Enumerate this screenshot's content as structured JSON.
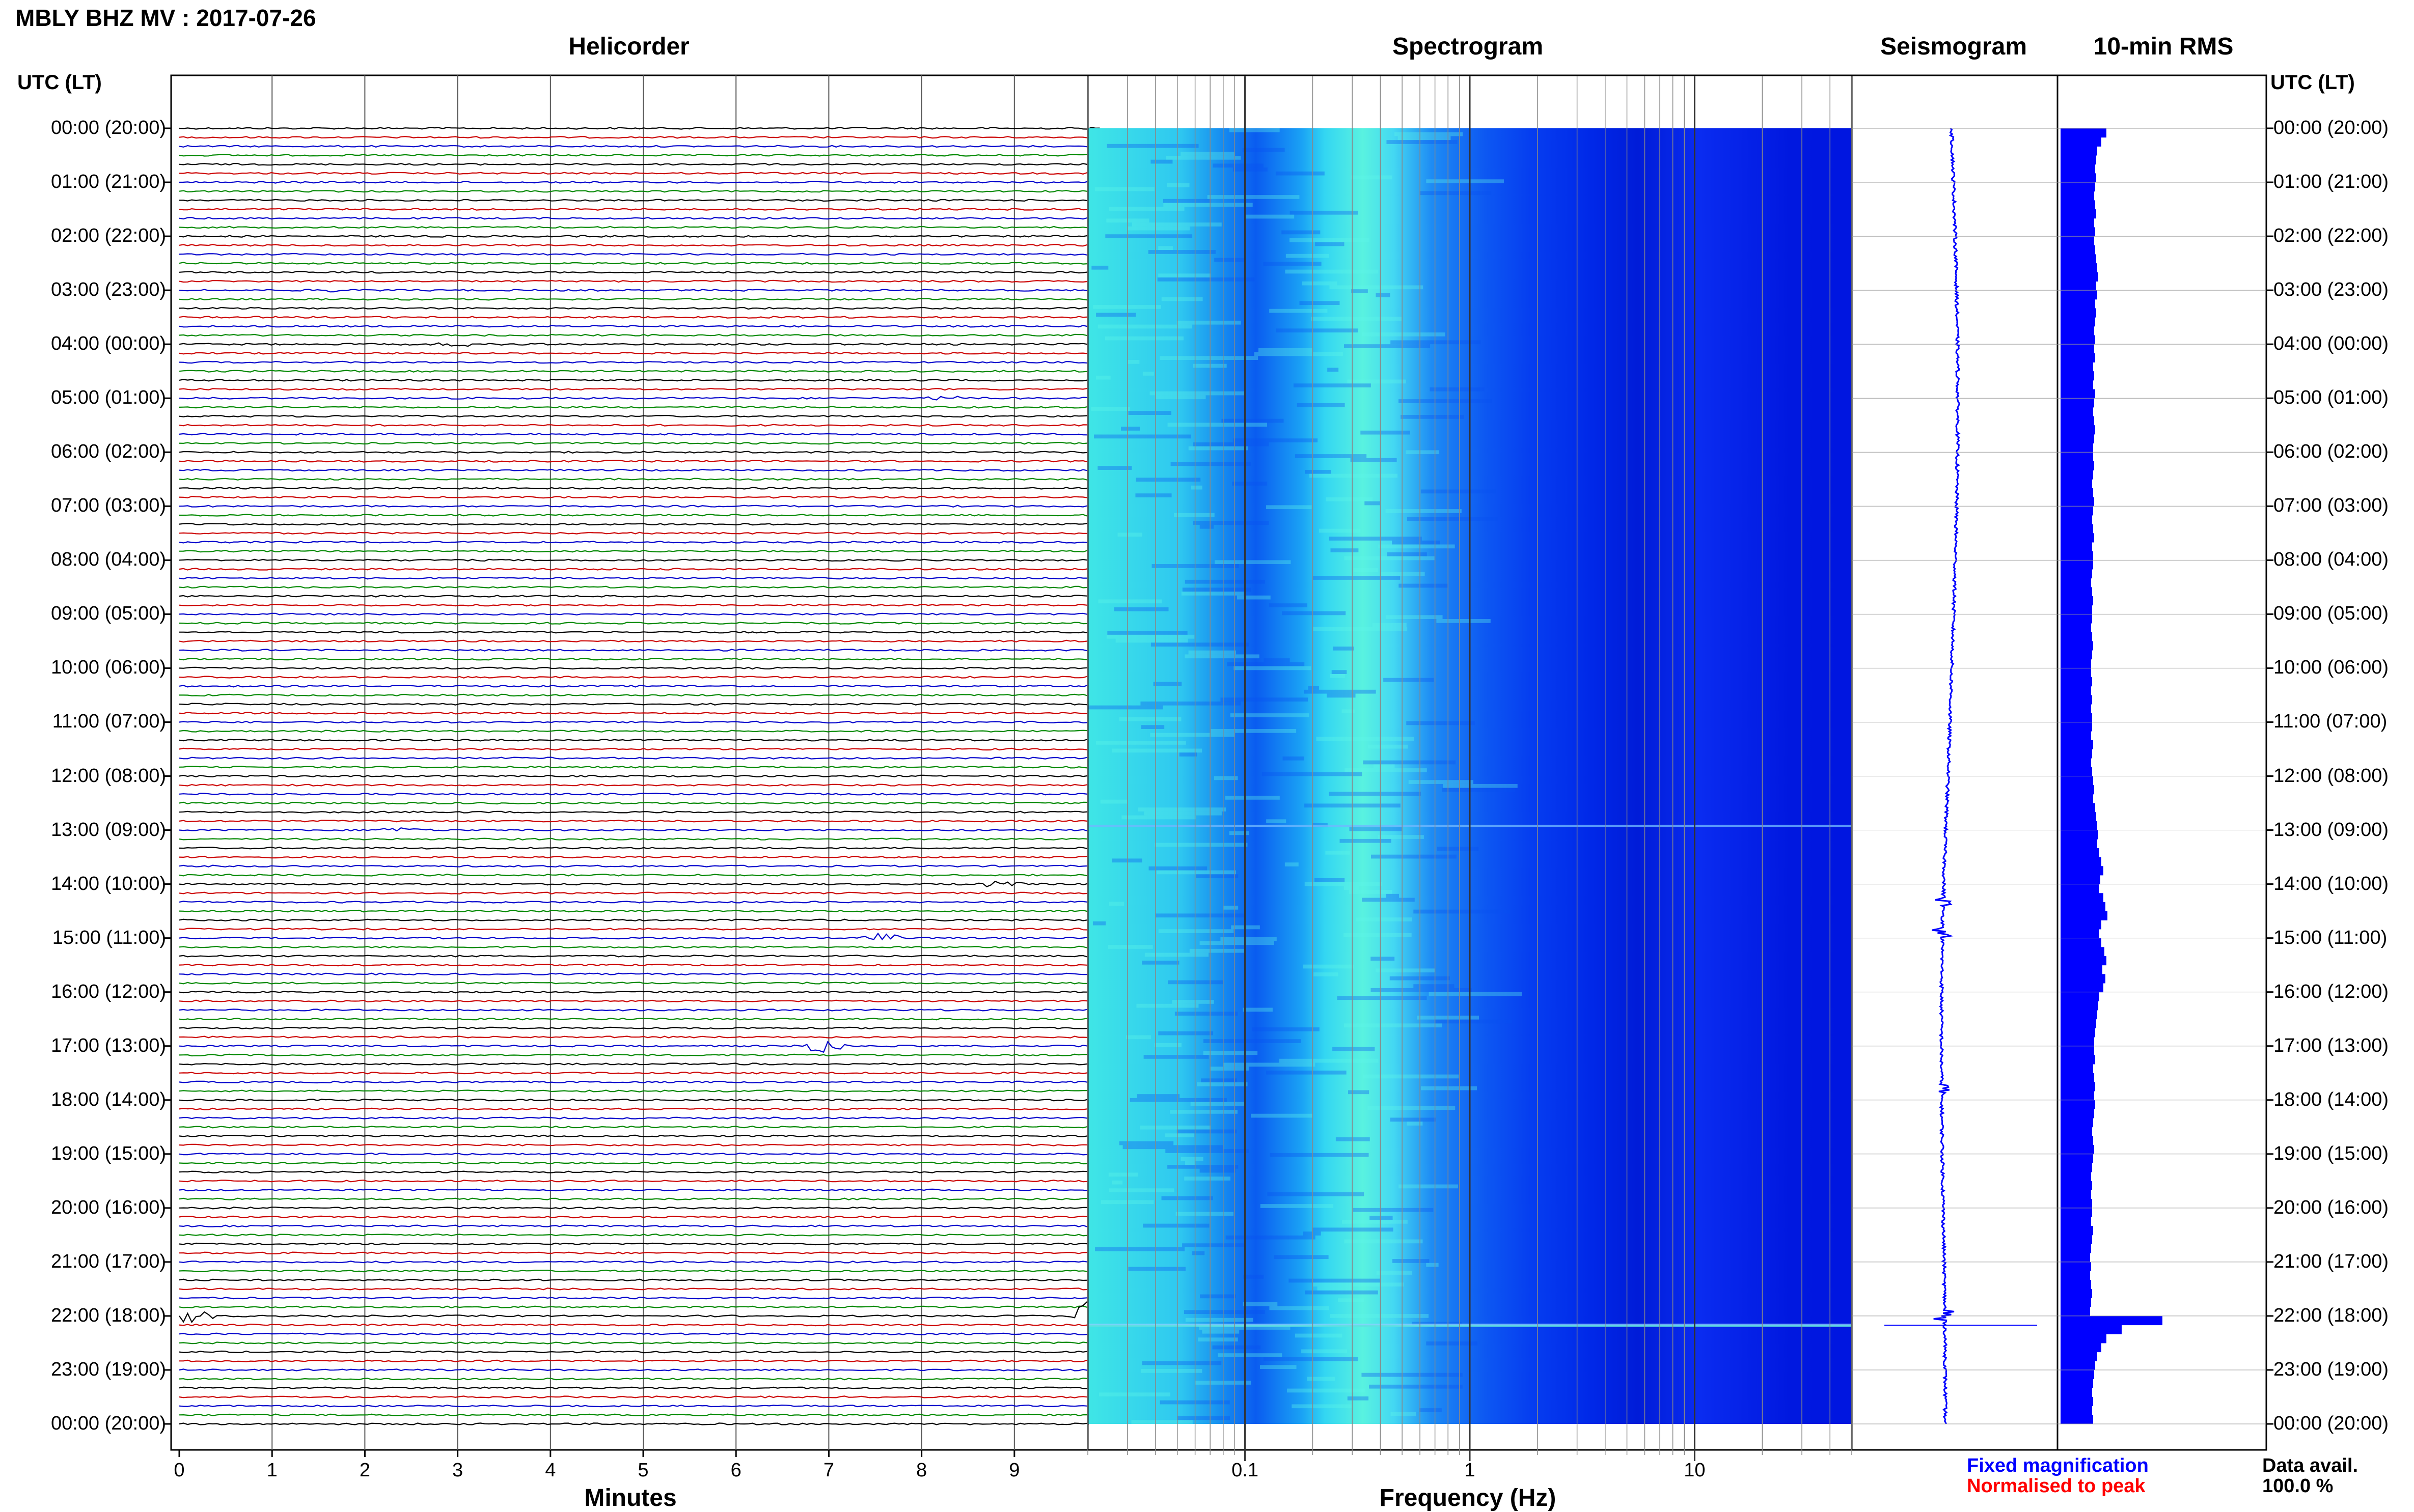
{
  "header": {
    "title": "MBLY BHZ MV : 2017-07-26"
  },
  "panels": {
    "helicorder": "Helicorder",
    "spectrogram": "Spectrogram",
    "seismogram": "Seismogram",
    "rms": "10-min RMS"
  },
  "axis_headers": {
    "left": "UTC (LT)",
    "right": "UTC (LT)"
  },
  "time_labels": [
    "00:00 (20:00)",
    "01:00 (21:00)",
    "02:00 (22:00)",
    "03:00 (23:00)",
    "04:00 (00:00)",
    "05:00 (01:00)",
    "06:00 (02:00)",
    "07:00 (03:00)",
    "08:00 (04:00)",
    "09:00 (05:00)",
    "10:00 (06:00)",
    "11:00 (07:00)",
    "12:00 (08:00)",
    "13:00 (09:00)",
    "14:00 (10:00)",
    "15:00 (11:00)",
    "16:00 (12:00)",
    "17:00 (13:00)",
    "18:00 (14:00)",
    "19:00 (15:00)",
    "20:00 (16:00)",
    "21:00 (17:00)",
    "22:00 (18:00)",
    "23:00 (19:00)",
    "00:00 (20:00)"
  ],
  "legend": {
    "fixed": "Fixed magnification",
    "normalised": "Normalised to peak",
    "colors": {
      "fixed": "#0000ff",
      "normalised": "#ff0000"
    }
  },
  "data_availability": {
    "label": "Data avail.",
    "value": "100.0 %"
  },
  "chart_data": [
    {
      "type": "line",
      "panel": "Helicorder",
      "xlabel": "Minutes",
      "x_ticks": [
        "0",
        "1",
        "2",
        "3",
        "4",
        "5",
        "6",
        "7",
        "8",
        "9"
      ],
      "xlim": [
        0,
        10
      ],
      "traces_per_hour": 6,
      "trace_colors": [
        "#000000",
        "#cc0000",
        "#0000cc",
        "#008800"
      ],
      "events": [
        {
          "hour": 3,
          "minute": 1.8,
          "amp": 0.3
        },
        {
          "hour": 4,
          "minute": 3.0,
          "amp": 0.3
        },
        {
          "hour": 5,
          "minute": 8.2,
          "amp": 0.3
        },
        {
          "hour": 13,
          "minute": 2.4,
          "amp": 0.4
        },
        {
          "hour": 14,
          "minute": 8.8,
          "amp": 0.4
        },
        {
          "hour": 15,
          "minute": 7.6,
          "amp": 0.6
        },
        {
          "hour": 17,
          "minute": 6.9,
          "amp": 0.8
        },
        {
          "hour": 22,
          "minute": 0.1,
          "amp": 1.2
        },
        {
          "hour": 22,
          "minute": 9.9,
          "amp": 2.5
        }
      ]
    },
    {
      "type": "heatmap",
      "panel": "Spectrogram",
      "xlabel": "Frequency (Hz)",
      "x_scale": "log",
      "xlim": [
        0.02,
        50
      ],
      "x_ticks": [
        "0.1",
        "1",
        "10"
      ],
      "colormap": [
        "#0000ff",
        "#00a0ff",
        "#00ffff",
        "#c0ff60"
      ]
    },
    {
      "type": "line",
      "panel": "Seismogram",
      "trace_color": "#0000ff",
      "spikes_at_hour": [
        14.3,
        14.9,
        17.8,
        22.0
      ]
    },
    {
      "type": "bar",
      "panel": "10-min RMS",
      "bar_color": "#0000ff",
      "x_min": 0,
      "x_max": 1,
      "values": [
        0.45,
        0.4,
        0.36,
        0.35,
        0.34,
        0.35,
        0.34,
        0.33,
        0.34,
        0.35,
        0.33,
        0.34,
        0.33,
        0.34,
        0.35,
        0.36,
        0.37,
        0.35,
        0.36,
        0.34,
        0.35,
        0.34,
        0.33,
        0.34,
        0.33,
        0.34,
        0.32,
        0.33,
        0.32,
        0.34,
        0.33,
        0.32,
        0.33,
        0.34,
        0.33,
        0.32,
        0.32,
        0.33,
        0.32,
        0.31,
        0.32,
        0.33,
        0.32,
        0.31,
        0.32,
        0.33,
        0.31,
        0.32,
        0.32,
        0.31,
        0.3,
        0.31,
        0.32,
        0.31,
        0.31,
        0.3,
        0.31,
        0.32,
        0.31,
        0.3,
        0.3,
        0.31,
        0.3,
        0.31,
        0.3,
        0.31,
        0.31,
        0.3,
        0.32,
        0.31,
        0.3,
        0.31,
        0.32,
        0.33,
        0.32,
        0.34,
        0.35,
        0.36,
        0.37,
        0.36,
        0.38,
        0.4,
        0.42,
        0.39,
        0.38,
        0.42,
        0.44,
        0.46,
        0.4,
        0.38,
        0.4,
        0.43,
        0.45,
        0.41,
        0.44,
        0.42,
        0.38,
        0.37,
        0.36,
        0.35,
        0.34,
        0.33,
        0.33,
        0.34,
        0.32,
        0.33,
        0.34,
        0.33,
        0.34,
        0.33,
        0.32,
        0.31,
        0.32,
        0.33,
        0.32,
        0.31,
        0.3,
        0.31,
        0.3,
        0.31,
        0.31,
        0.3,
        0.32,
        0.31,
        0.3,
        0.29,
        0.3,
        0.29,
        0.3,
        0.31,
        0.3,
        0.29,
        1.0,
        0.6,
        0.45,
        0.4,
        0.36,
        0.34,
        0.33,
        0.32,
        0.31,
        0.32,
        0.31,
        0.32
      ]
    }
  ]
}
